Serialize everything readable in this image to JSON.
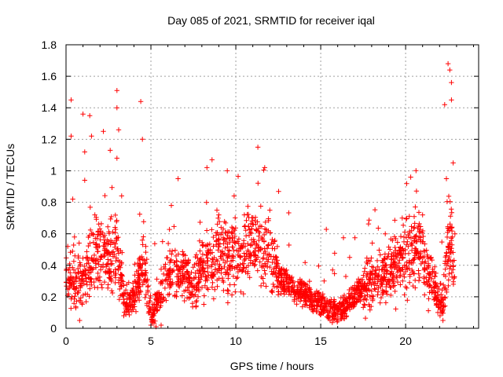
{
  "chart_data": {
    "type": "scatter",
    "title": "Day 085 of 2021, SRMTID for receiver iqal",
    "xlabel": "GPS time / hours",
    "ylabel": "SRMTID / TECUs",
    "xlim": [
      0,
      24.3
    ],
    "ylim": [
      0,
      1.8
    ],
    "xticks": [
      0,
      5,
      10,
      15,
      20
    ],
    "xtick_labels": [
      "0",
      "5",
      "10",
      "15",
      "20"
    ],
    "yticks": [
      0,
      0.2,
      0.4,
      0.6,
      0.8,
      1.0,
      1.2,
      1.4,
      1.6,
      1.8
    ],
    "ytick_labels": [
      "0",
      "0.2",
      "0.4",
      "0.6",
      "0.8",
      "1",
      "1.2",
      "1.4",
      "1.6",
      "1.8"
    ],
    "grid": true,
    "marker": "+",
    "marker_color": "#ff0000",
    "series": [
      {
        "name": "SRMTID",
        "sample_points": [
          [
            0.1,
            0.52
          ],
          [
            0.2,
            0.3
          ],
          [
            0.3,
            1.45
          ],
          [
            0.3,
            1.22
          ],
          [
            0.4,
            0.82
          ],
          [
            0.5,
            0.58
          ],
          [
            0.6,
            0.3
          ],
          [
            0.8,
            0.05
          ],
          [
            1.0,
            1.36
          ],
          [
            1.1,
            1.12
          ],
          [
            1.1,
            0.94
          ],
          [
            1.4,
            1.35
          ],
          [
            1.5,
            1.22
          ],
          [
            1.7,
            0.72
          ],
          [
            2.2,
            1.25
          ],
          [
            2.6,
            1.13
          ],
          [
            3.0,
            1.51
          ],
          [
            3.0,
            1.4
          ],
          [
            3.1,
            1.26
          ],
          [
            3.0,
            1.08
          ],
          [
            3.4,
            0.08
          ],
          [
            3.8,
            0.12
          ],
          [
            4.4,
            1.44
          ],
          [
            4.5,
            1.2
          ],
          [
            4.7,
            0.52
          ],
          [
            5.0,
            0.02
          ],
          [
            5.3,
            0.01
          ],
          [
            5.6,
            0.02
          ],
          [
            6.2,
            0.78
          ],
          [
            6.6,
            0.95
          ],
          [
            7.2,
            0.42
          ],
          [
            7.7,
            0.28
          ],
          [
            8.3,
            1.02
          ],
          [
            8.6,
            1.07
          ],
          [
            9.0,
            0.72
          ],
          [
            9.5,
            1.0
          ],
          [
            9.9,
            0.84
          ],
          [
            10.5,
            0.72
          ],
          [
            11.3,
            1.15
          ],
          [
            11.7,
            1.02
          ],
          [
            12.0,
            0.75
          ],
          [
            12.4,
            0.45
          ],
          [
            12.8,
            0.3
          ],
          [
            13.3,
            0.25
          ],
          [
            13.8,
            0.22
          ],
          [
            14.3,
            0.2
          ],
          [
            14.8,
            0.14
          ],
          [
            15.2,
            0.3
          ],
          [
            15.4,
            0.1
          ],
          [
            15.8,
            0.06
          ],
          [
            16.2,
            0.09
          ],
          [
            16.7,
            0.15
          ],
          [
            17.2,
            0.25
          ],
          [
            17.7,
            0.42
          ],
          [
            18.2,
            0.35
          ],
          [
            18.8,
            0.6
          ],
          [
            19.3,
            0.48
          ],
          [
            19.8,
            0.7
          ],
          [
            20.3,
            0.96
          ],
          [
            20.6,
            0.55
          ],
          [
            21.0,
            0.72
          ],
          [
            21.5,
            0.45
          ],
          [
            21.9,
            0.1
          ],
          [
            22.2,
            0.05
          ],
          [
            22.3,
            1.42
          ],
          [
            22.4,
            0.95
          ],
          [
            22.5,
            1.68
          ],
          [
            22.6,
            1.64
          ],
          [
            22.7,
            1.56
          ],
          [
            22.7,
            1.45
          ],
          [
            22.8,
            1.05
          ],
          [
            22.9,
            0.6
          ]
        ]
      }
    ]
  }
}
